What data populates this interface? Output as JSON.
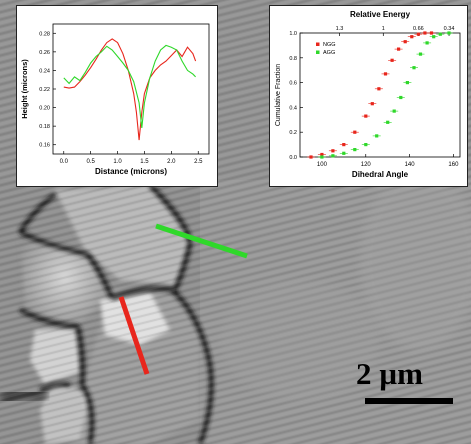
{
  "colors": {
    "ngg": "#e8261c",
    "agg": "#2fd82a",
    "background": "#8f8f8f"
  },
  "scale_bar": {
    "label": "2 µm"
  },
  "chart_data": [
    {
      "type": "line",
      "xlabel": "Distance (microns)",
      "ylabel": "Height (microns)",
      "xlim": [
        -0.2,
        2.7
      ],
      "ylim": [
        0.15,
        0.29
      ],
      "xticks": [
        0.0,
        0.5,
        1.0,
        1.5,
        2.0,
        2.5
      ],
      "yticks": [
        0.16,
        0.18,
        0.2,
        0.22,
        0.24,
        0.26,
        0.28
      ],
      "series": [
        {
          "color": "#e8261c",
          "x": [
            0.0,
            0.1,
            0.2,
            0.3,
            0.4,
            0.5,
            0.6,
            0.7,
            0.8,
            0.9,
            1.0,
            1.1,
            1.2,
            1.3,
            1.35,
            1.4,
            1.45,
            1.5,
            1.6,
            1.7,
            1.8,
            1.9,
            2.0,
            2.1,
            2.2,
            2.3,
            2.4,
            2.45
          ],
          "y": [
            0.222,
            0.221,
            0.222,
            0.228,
            0.235,
            0.243,
            0.252,
            0.262,
            0.27,
            0.274,
            0.27,
            0.258,
            0.24,
            0.215,
            0.195,
            0.165,
            0.195,
            0.215,
            0.232,
            0.24,
            0.246,
            0.25,
            0.256,
            0.262,
            0.255,
            0.265,
            0.258,
            0.25
          ]
        },
        {
          "color": "#2fd82a",
          "x": [
            0.0,
            0.1,
            0.2,
            0.3,
            0.4,
            0.5,
            0.6,
            0.7,
            0.8,
            0.9,
            1.0,
            1.1,
            1.2,
            1.3,
            1.4,
            1.45,
            1.5,
            1.6,
            1.7,
            1.8,
            1.9,
            2.0,
            2.1,
            2.2,
            2.3,
            2.4,
            2.45
          ],
          "y": [
            0.232,
            0.226,
            0.233,
            0.229,
            0.238,
            0.248,
            0.255,
            0.26,
            0.266,
            0.262,
            0.255,
            0.248,
            0.24,
            0.228,
            0.205,
            0.178,
            0.205,
            0.232,
            0.25,
            0.262,
            0.267,
            0.265,
            0.262,
            0.25,
            0.24,
            0.236,
            0.233
          ]
        }
      ]
    },
    {
      "type": "scatter",
      "top_axis_label": "Relative Energy",
      "top_ticks": [
        {
          "label": "1.3",
          "x": 108
        },
        {
          "label": "1",
          "x": 128
        },
        {
          "label": "0.66",
          "x": 144
        },
        {
          "label": "0.34",
          "x": 158
        }
      ],
      "xlabel": "Dihedral Angle",
      "ylabel": "Cumulative Fraction",
      "xlim": [
        90,
        163
      ],
      "ylim": [
        0,
        1.0
      ],
      "xticks": [
        100,
        120,
        140,
        160
      ],
      "yticks": [
        0.0,
        0.2,
        0.4,
        0.6,
        0.8,
        1.0
      ],
      "legend": {
        "placement": "top-left"
      },
      "series": [
        {
          "name": "NGG",
          "color": "#e8261c",
          "x": [
            95,
            100,
            105,
            110,
            115,
            120,
            123,
            126,
            129,
            132,
            135,
            138,
            141,
            144,
            147,
            150
          ],
          "y": [
            0.0,
            0.02,
            0.05,
            0.1,
            0.2,
            0.33,
            0.43,
            0.55,
            0.67,
            0.78,
            0.87,
            0.93,
            0.97,
            0.99,
            1.0,
            1.0
          ]
        },
        {
          "name": "AGG",
          "color": "#2fd82a",
          "x": [
            100,
            105,
            110,
            115,
            120,
            125,
            130,
            133,
            136,
            139,
            142,
            145,
            148,
            151,
            154,
            158
          ],
          "y": [
            0.0,
            0.01,
            0.03,
            0.06,
            0.1,
            0.17,
            0.28,
            0.37,
            0.48,
            0.6,
            0.72,
            0.83,
            0.92,
            0.97,
            0.99,
            1.0
          ]
        }
      ]
    }
  ]
}
